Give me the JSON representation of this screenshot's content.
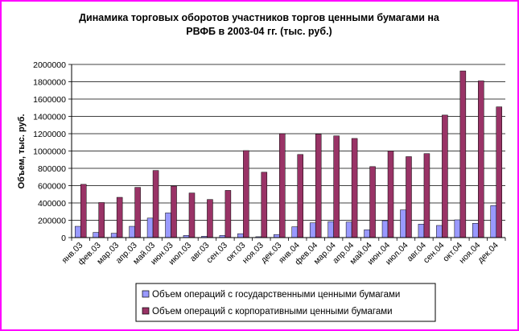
{
  "chart_data": {
    "type": "bar",
    "title_lines": [
      "Динамика торговых оборотов участников торгов ценными бумагами на",
      "РВФБ в 2003-04 гг. (тыс. руб.)"
    ],
    "xlabel": "",
    "ylabel": "Объем, тыс. руб.",
    "ylim": [
      0,
      2000000
    ],
    "yticks": [
      "0",
      "200000",
      "400000",
      "600000",
      "800000",
      "1000000",
      "1200000",
      "1400000",
      "1600000",
      "1800000",
      "2000000"
    ],
    "grid": true,
    "legend_position": "bottom",
    "categories": [
      "янв.03",
      "фев.03",
      "мар.03",
      "апр.03",
      "май.03",
      "июн.03",
      "июл.03",
      "авг.03",
      "сен.03",
      "окт.03",
      "ноя.03",
      "дек.03",
      "янв.04",
      "фев.04",
      "мар.04",
      "апр.04",
      "май.04",
      "июн.04",
      "июл.04",
      "авг.04",
      "сен.04",
      "окт.04",
      "ноя.04",
      "дек.04"
    ],
    "series": [
      {
        "name": "Объем операций с государственными ценными бумагами",
        "color": "#9999ff",
        "values": [
          130000,
          60000,
          50000,
          130000,
          225000,
          285000,
          25000,
          15000,
          25000,
          45000,
          10000,
          35000,
          125000,
          170000,
          185000,
          180000,
          90000,
          195000,
          320000,
          155000,
          140000,
          205000,
          165000,
          370000
        ]
      },
      {
        "name": "Объем операций с корпоративными ценными бумагами",
        "color": "#993366",
        "values": [
          615000,
          405000,
          465000,
          580000,
          775000,
          595000,
          515000,
          440000,
          545000,
          1005000,
          755000,
          1200000,
          960000,
          1195000,
          1175000,
          1145000,
          820000,
          1000000,
          935000,
          970000,
          1415000,
          1925000,
          1810000,
          1510000
        ]
      }
    ]
  }
}
